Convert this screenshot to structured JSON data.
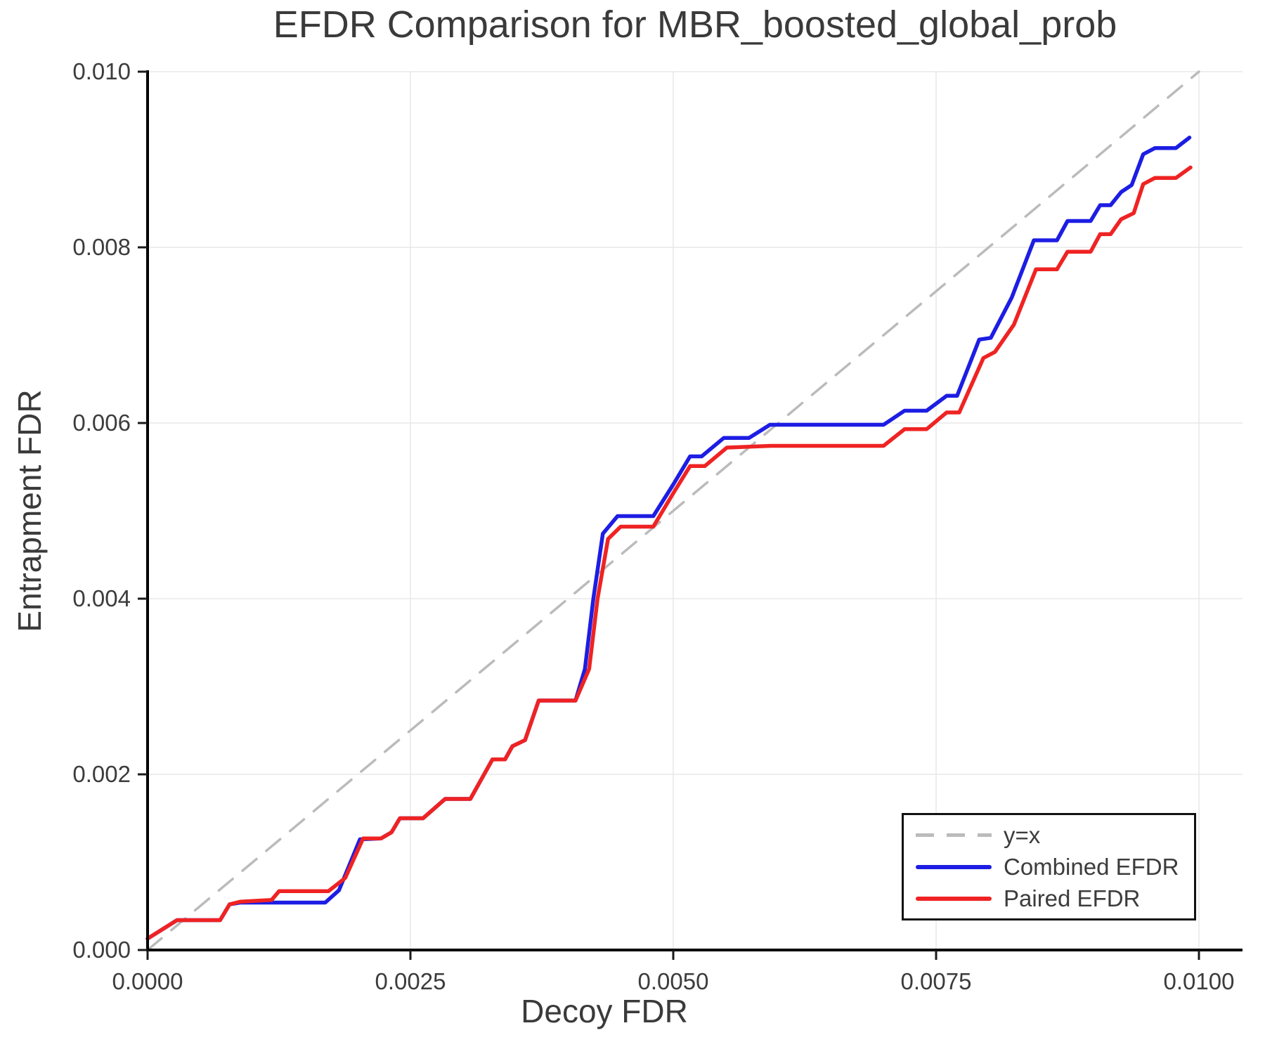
{
  "chart_data": {
    "type": "line",
    "title": "EFDR Comparison for MBR_boosted_global_prob",
    "xlabel": "Decoy FDR",
    "ylabel": "Entrapment FDR",
    "xlim": [
      0.0,
      0.0104
    ],
    "ylim": [
      0.0,
      0.01
    ],
    "grid": true,
    "legend_position": "lower right",
    "x_ticks": [
      0.0,
      0.0025,
      0.005,
      0.0075,
      0.01
    ],
    "x_tick_labels": [
      "0.0000",
      "0.0025",
      "0.0050",
      "0.0075",
      "0.0100"
    ],
    "y_ticks": [
      0.0,
      0.002,
      0.004,
      0.006,
      0.008,
      0.01
    ],
    "y_tick_labels": [
      "0.000",
      "0.002",
      "0.004",
      "0.006",
      "0.008",
      "0.010"
    ],
    "colors": {
      "identity_line": "#bbbbbb",
      "combined": "#1d1de4",
      "paired": "#ef2323",
      "grid": "#e8e8e8",
      "spine": "#000000",
      "text": "#3c3c3c"
    },
    "series": [
      {
        "name": "y=x",
        "style": "dashed",
        "color": "#bbbbbb",
        "points": [
          [
            0.0,
            0.0
          ],
          [
            0.01,
            0.01
          ]
        ]
      },
      {
        "name": "Combined EFDR",
        "style": "solid",
        "color": "#1d1de4",
        "points": [
          [
            0.0,
            0.00013
          ],
          [
            0.00028,
            0.00034
          ],
          [
            0.00069,
            0.00034
          ],
          [
            0.00078,
            0.00052
          ],
          [
            0.00088,
            0.00054
          ],
          [
            0.00169,
            0.00054
          ],
          [
            0.00182,
            0.00068
          ],
          [
            0.00202,
            0.00126
          ],
          [
            0.00222,
            0.00127
          ],
          [
            0.00232,
            0.00134
          ],
          [
            0.0024,
            0.0015
          ],
          [
            0.00262,
            0.0015
          ],
          [
            0.00283,
            0.00172
          ],
          [
            0.00307,
            0.00172
          ],
          [
            0.00328,
            0.00217
          ],
          [
            0.0034,
            0.00217
          ],
          [
            0.00347,
            0.00232
          ],
          [
            0.00359,
            0.00239
          ],
          [
            0.00372,
            0.00284
          ],
          [
            0.00407,
            0.00284
          ],
          [
            0.00416,
            0.0032
          ],
          [
            0.00424,
            0.004
          ],
          [
            0.00433,
            0.00474
          ],
          [
            0.00447,
            0.00494
          ],
          [
            0.00481,
            0.00494
          ],
          [
            0.005,
            0.0053
          ],
          [
            0.00516,
            0.00562
          ],
          [
            0.00527,
            0.00562
          ],
          [
            0.00548,
            0.00583
          ],
          [
            0.00572,
            0.00583
          ],
          [
            0.00592,
            0.00598
          ],
          [
            0.007,
            0.00598
          ],
          [
            0.0072,
            0.00614
          ],
          [
            0.00741,
            0.00614
          ],
          [
            0.0076,
            0.00631
          ],
          [
            0.0077,
            0.00631
          ],
          [
            0.00791,
            0.00695
          ],
          [
            0.00802,
            0.00697
          ],
          [
            0.00822,
            0.00743
          ],
          [
            0.00843,
            0.00808
          ],
          [
            0.00865,
            0.00808
          ],
          [
            0.00875,
            0.0083
          ],
          [
            0.00897,
            0.0083
          ],
          [
            0.00906,
            0.00848
          ],
          [
            0.00916,
            0.00848
          ],
          [
            0.00926,
            0.00863
          ],
          [
            0.00936,
            0.00871
          ],
          [
            0.00947,
            0.00906
          ],
          [
            0.00958,
            0.00913
          ],
          [
            0.00978,
            0.00913
          ],
          [
            0.00991,
            0.00925
          ]
        ]
      },
      {
        "name": "Paired EFDR",
        "style": "solid",
        "color": "#ef2323",
        "points": [
          [
            0.0,
            0.00013
          ],
          [
            0.00028,
            0.00034
          ],
          [
            0.00069,
            0.00034
          ],
          [
            0.00078,
            0.00052
          ],
          [
            0.00088,
            0.00055
          ],
          [
            0.00118,
            0.00057
          ],
          [
            0.00125,
            0.00067
          ],
          [
            0.00172,
            0.00067
          ],
          [
            0.00188,
            0.00082
          ],
          [
            0.00205,
            0.00127
          ],
          [
            0.00222,
            0.00127
          ],
          [
            0.00232,
            0.00134
          ],
          [
            0.0024,
            0.0015
          ],
          [
            0.00262,
            0.0015
          ],
          [
            0.00283,
            0.00172
          ],
          [
            0.00307,
            0.00172
          ],
          [
            0.00328,
            0.00217
          ],
          [
            0.0034,
            0.00217
          ],
          [
            0.00347,
            0.00232
          ],
          [
            0.00359,
            0.00239
          ],
          [
            0.00372,
            0.00284
          ],
          [
            0.00407,
            0.00284
          ],
          [
            0.0042,
            0.0032
          ],
          [
            0.00428,
            0.004
          ],
          [
            0.00438,
            0.00468
          ],
          [
            0.0045,
            0.00482
          ],
          [
            0.00481,
            0.00482
          ],
          [
            0.005,
            0.0052
          ],
          [
            0.00516,
            0.00551
          ],
          [
            0.0053,
            0.00551
          ],
          [
            0.00551,
            0.00572
          ],
          [
            0.00593,
            0.00574
          ],
          [
            0.007,
            0.00574
          ],
          [
            0.0072,
            0.00593
          ],
          [
            0.00741,
            0.00593
          ],
          [
            0.0076,
            0.00612
          ],
          [
            0.00772,
            0.00612
          ],
          [
            0.00795,
            0.00674
          ],
          [
            0.00806,
            0.00681
          ],
          [
            0.00824,
            0.00712
          ],
          [
            0.00845,
            0.00775
          ],
          [
            0.00865,
            0.00775
          ],
          [
            0.00875,
            0.00795
          ],
          [
            0.00897,
            0.00795
          ],
          [
            0.00906,
            0.00815
          ],
          [
            0.00916,
            0.00815
          ],
          [
            0.00926,
            0.00832
          ],
          [
            0.00938,
            0.00839
          ],
          [
            0.00947,
            0.00872
          ],
          [
            0.00958,
            0.00879
          ],
          [
            0.00978,
            0.00879
          ],
          [
            0.00992,
            0.00891
          ]
        ]
      }
    ]
  }
}
